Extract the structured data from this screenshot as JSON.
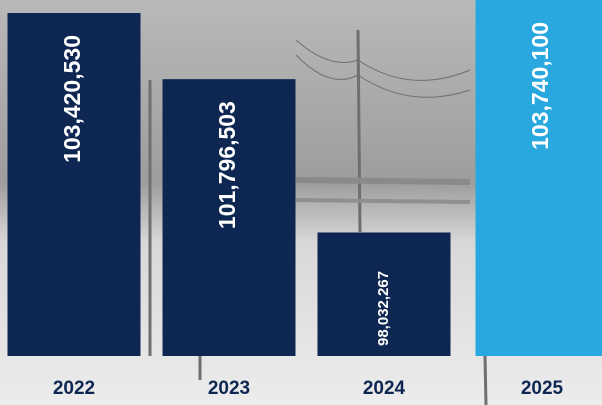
{
  "chart_data": {
    "type": "bar",
    "categories": [
      "2022",
      "2023",
      "2024",
      "2025"
    ],
    "values": [
      103420530,
      101796503,
      98032267,
      103740100
    ],
    "value_labels": [
      "103,420,530",
      "101,796,503",
      "98,032,267",
      "103,740,100"
    ],
    "colors": [
      "#0d2652",
      "#0d2652",
      "#0d2652",
      "#29a8df"
    ],
    "ylim": [
      95000000,
      103740100
    ]
  }
}
